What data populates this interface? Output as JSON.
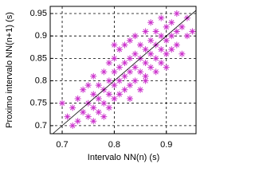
{
  "chart_data": {
    "type": "scatter",
    "x_label": "Intervalo NN(n) (s)",
    "y_label": "Proximo intervalo NN(n+1) (s)",
    "xlim": [
      0.677,
      0.957
    ],
    "ylim": [
      0.682,
      0.966
    ],
    "xticks": [
      0.7,
      0.8,
      0.9
    ],
    "yticks": [
      0.7,
      0.75,
      0.8,
      0.85,
      0.9,
      0.95
    ],
    "grid": true,
    "marker": "asterisk",
    "identity_line": true,
    "series": [
      {
        "color": "#cc33cc",
        "x": [
          0.71,
          0.72,
          0.72,
          0.73,
          0.73,
          0.74,
          0.74,
          0.75,
          0.75,
          0.75,
          0.76,
          0.76,
          0.76,
          0.77,
          0.77,
          0.77,
          0.78,
          0.78,
          0.78,
          0.79,
          0.79,
          0.79,
          0.79,
          0.8,
          0.8,
          0.8,
          0.8,
          0.81,
          0.81,
          0.81,
          0.81,
          0.82,
          0.82,
          0.82,
          0.82,
          0.83,
          0.83,
          0.83,
          0.83,
          0.84,
          0.84,
          0.84,
          0.84,
          0.85,
          0.85,
          0.85,
          0.85,
          0.86,
          0.86,
          0.86,
          0.86,
          0.87,
          0.87,
          0.87,
          0.87,
          0.88,
          0.88,
          0.88,
          0.88,
          0.89,
          0.89,
          0.89,
          0.89,
          0.9,
          0.9,
          0.9,
          0.9,
          0.91,
          0.91,
          0.91,
          0.92,
          0.92,
          0.93,
          0.93,
          0.94,
          0.94,
          0.95,
          0.7,
          0.78,
          0.83,
          0.86,
          0.92,
          0.8,
          0.76
        ],
        "values": [
          0.72,
          0.7,
          0.74,
          0.71,
          0.76,
          0.73,
          0.78,
          0.72,
          0.75,
          0.79,
          0.74,
          0.77,
          0.81,
          0.73,
          0.76,
          0.79,
          0.75,
          0.78,
          0.82,
          0.74,
          0.77,
          0.8,
          0.84,
          0.76,
          0.79,
          0.82,
          0.85,
          0.77,
          0.8,
          0.83,
          0.87,
          0.78,
          0.81,
          0.84,
          0.88,
          0.79,
          0.82,
          0.85,
          0.89,
          0.8,
          0.83,
          0.86,
          0.9,
          0.78,
          0.82,
          0.85,
          0.88,
          0.81,
          0.84,
          0.87,
          0.91,
          0.83,
          0.86,
          0.89,
          0.93,
          0.82,
          0.85,
          0.88,
          0.91,
          0.84,
          0.87,
          0.9,
          0.94,
          0.83,
          0.86,
          0.89,
          0.92,
          0.87,
          0.9,
          0.93,
          0.88,
          0.91,
          0.86,
          0.92,
          0.9,
          0.94,
          0.91,
          0.75,
          0.72,
          0.76,
          0.8,
          0.95,
          0.88,
          0.71
        ]
      }
    ]
  }
}
